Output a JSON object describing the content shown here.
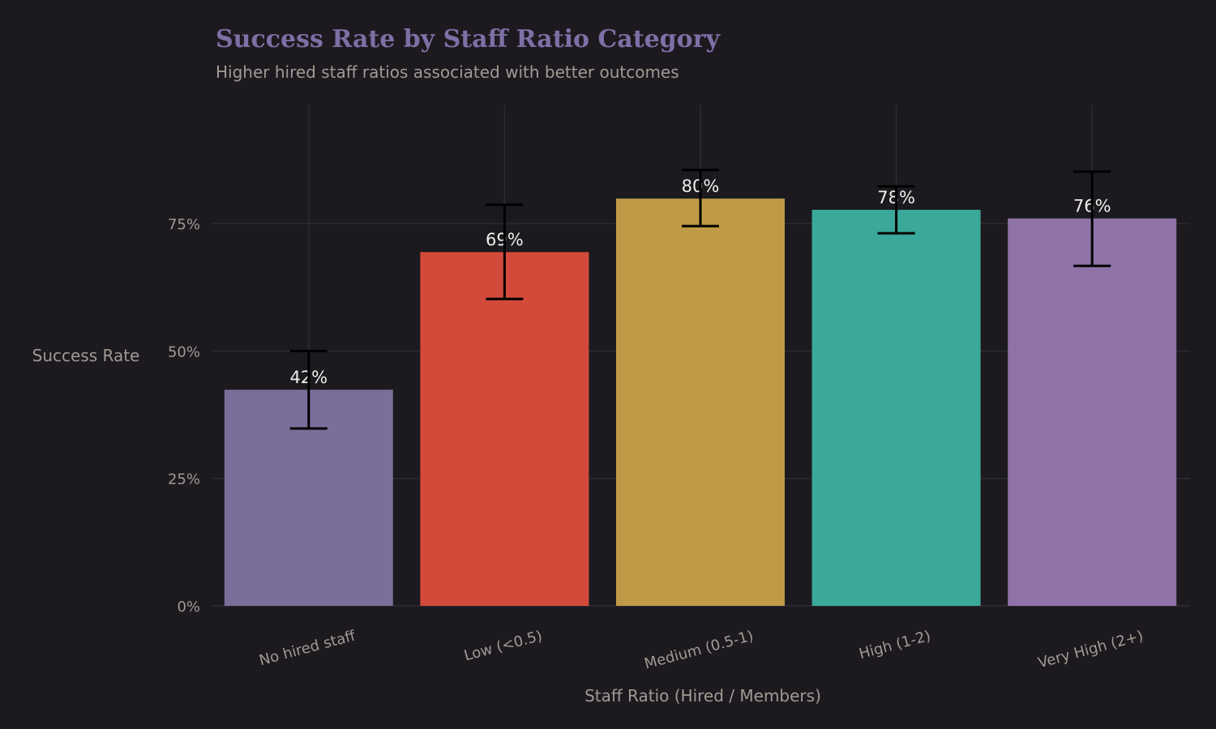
{
  "chart_data": {
    "type": "bar",
    "title": "Success Rate by Staff Ratio Category",
    "subtitle": "Higher hired staff ratios associated with better outcomes",
    "xlabel": "Staff Ratio (Hired / Members)",
    "ylabel": "Success Rate",
    "categories": [
      "No hired staff",
      "Low (<0.5)",
      "Medium (0.5-1)",
      "High (1-2)",
      "Very High (2+)"
    ],
    "values": [
      0.424,
      0.694,
      0.799,
      0.777,
      0.76
    ],
    "data_labels": [
      "42%",
      "69%",
      "80%",
      "78%",
      "76%"
    ],
    "error_low": [
      0.348,
      0.602,
      0.745,
      0.731,
      0.667
    ],
    "error_high": [
      0.5,
      0.787,
      0.855,
      0.823,
      0.852
    ],
    "colors": [
      "#7a6e9a",
      "#d44a3a",
      "#c09b47",
      "#3aa99a",
      "#8e72a8"
    ],
    "ylim": [
      0,
      0.982
    ],
    "yticks": [
      0,
      0.25,
      0.5,
      0.75
    ],
    "ytick_labels": [
      "0%",
      "25%",
      "50%",
      "75%"
    ],
    "grid": true,
    "background": "#1c1a1f"
  }
}
